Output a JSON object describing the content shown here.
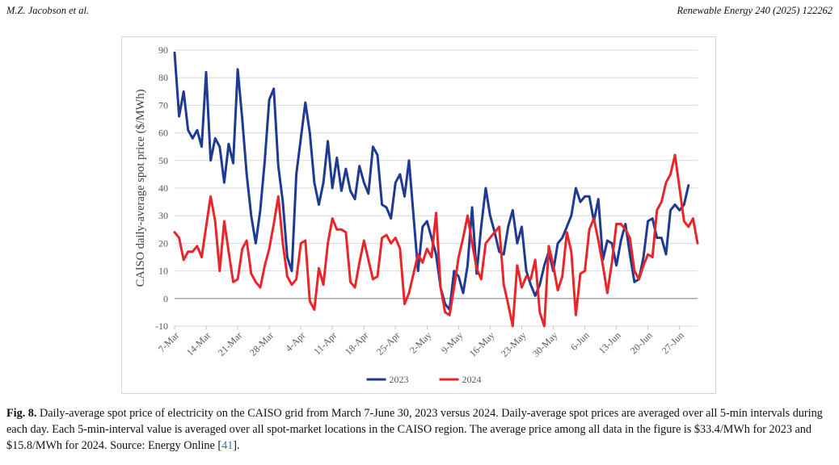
{
  "header": {
    "authors": "M.Z. Jacobson et al.",
    "journal": "Renewable Energy 240 (2025) 122262"
  },
  "caption": {
    "label": "Fig. 8.",
    "text_before_ref": "Daily-average spot price of electricity on the CAISO grid from March 7-June 30, 2023 versus 2024. Daily-average spot prices are averaged over all 5-min intervals during each day. Each 5-min-interval value is averaged over all spot-market locations in the CAISO region. The average price among all data in the figure is $33.4/MWh for 2023 and $15.8/MWh for 2024. Source: Energy Online [",
    "ref": "41",
    "text_after_ref": "]."
  },
  "chart_data": {
    "type": "line",
    "title": "",
    "xlabel": "",
    "ylabel": "CAISO daily-average spot price ($/MWh)",
    "ylim": [
      -10,
      90
    ],
    "yticks": [
      -10,
      0,
      10,
      20,
      30,
      40,
      50,
      60,
      70,
      80,
      90
    ],
    "grid": "horizontal",
    "legend": "bottom",
    "x_start": "7-Mar",
    "x_end": "30-Jun",
    "xtick_labels": [
      "7-Mar",
      "14-Mar",
      "21-Mar",
      "28-Mar",
      "4-Apr",
      "11-Apr",
      "18-Apr",
      "25-Apr",
      "2-May",
      "9-May",
      "16-May",
      "23-May",
      "30-May",
      "6-Jun",
      "13-Jun",
      "20-Jun",
      "27-Jun"
    ],
    "series": [
      {
        "name": "2023",
        "color": "#1f3a93",
        "values": [
          89,
          66,
          75,
          61,
          58,
          61,
          55,
          82,
          50,
          58,
          55,
          42,
          56,
          49,
          83,
          65,
          45,
          30,
          20,
          32,
          50,
          72,
          76,
          48,
          35,
          15,
          10,
          45,
          58,
          71,
          60,
          42,
          34,
          42,
          57,
          40,
          51,
          39,
          47,
          39,
          36,
          48,
          42,
          38,
          55,
          52,
          34,
          33,
          29,
          42,
          45,
          37,
          50,
          30,
          10,
          26,
          28,
          22,
          16,
          4,
          -2,
          -4,
          10,
          8,
          2,
          12,
          33,
          9,
          26,
          40,
          30,
          24,
          17,
          16,
          26,
          32,
          20,
          26,
          10,
          5,
          1,
          5,
          12,
          17,
          10,
          20,
          22,
          26,
          30,
          40,
          35,
          37,
          37,
          28,
          36,
          14,
          21,
          20,
          12,
          21,
          27,
          16,
          6,
          7,
          15,
          28,
          29,
          22,
          22,
          16,
          32,
          34,
          32,
          34,
          41
        ]
      },
      {
        "name": "2024",
        "color": "#e8262a",
        "values": [
          24,
          22,
          14,
          17,
          17,
          19,
          15,
          26,
          37,
          28,
          10,
          28,
          17,
          6,
          7,
          18,
          21,
          9,
          6,
          4,
          12,
          18,
          27,
          37,
          20,
          8,
          5,
          7,
          20,
          21,
          -1,
          -4,
          11,
          5,
          20,
          29,
          25,
          25,
          24,
          6,
          4,
          13,
          21,
          14,
          7,
          8,
          22,
          23,
          20,
          22,
          18,
          -2,
          2,
          9,
          16,
          13,
          18,
          15,
          31,
          4,
          -5,
          -6,
          4,
          15,
          22,
          30,
          20,
          11,
          7,
          20,
          22,
          24,
          26,
          5,
          -2,
          -10,
          12,
          4,
          8,
          7,
          14,
          -5,
          -10,
          19,
          12,
          3,
          8,
          24,
          17,
          -6,
          9,
          10,
          25,
          29,
          21,
          12,
          2,
          13,
          27,
          27,
          25,
          22,
          10,
          7,
          12,
          16,
          15,
          32,
          35,
          42,
          45,
          52,
          40,
          28,
          26,
          29,
          20
        ]
      }
    ]
  }
}
